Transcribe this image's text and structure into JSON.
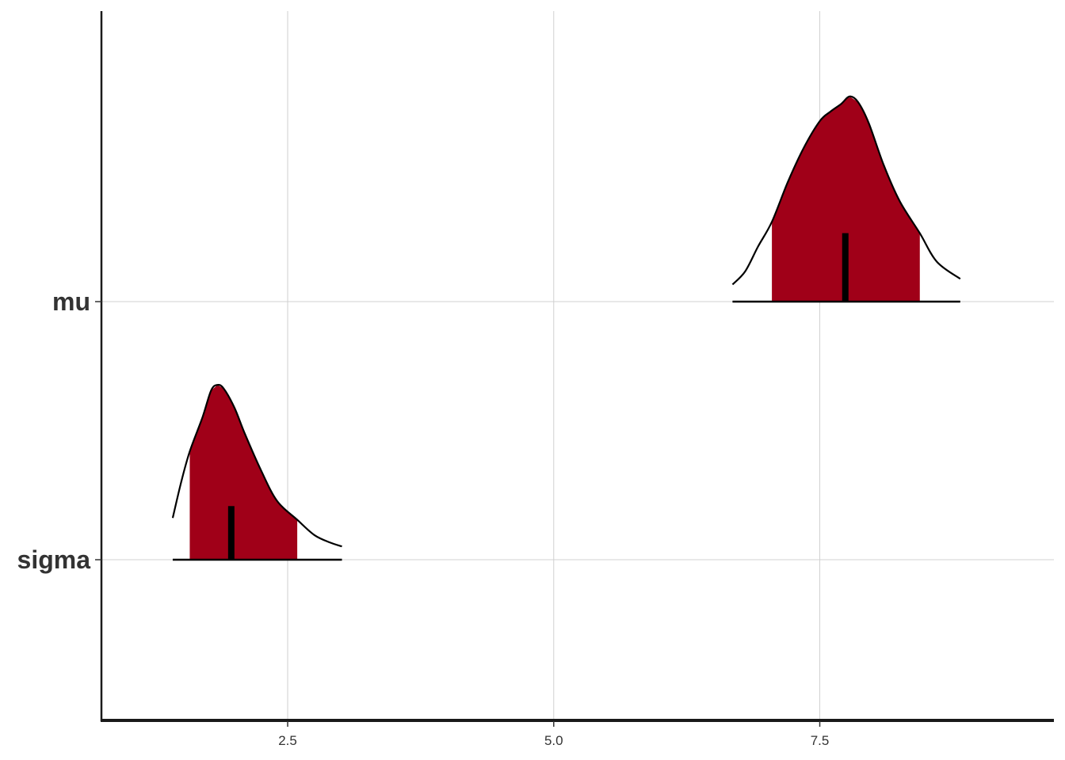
{
  "chart_data": {
    "type": "area",
    "title": "",
    "xlabel": "",
    "ylabel": "",
    "xlim": [
      0.75,
      9.7
    ],
    "x_ticks": [
      2.5,
      5.0,
      7.5
    ],
    "x_tick_labels": [
      "2.5",
      "5.0",
      "7.5"
    ],
    "categories": [
      "mu",
      "sigma"
    ],
    "grid": true,
    "fill_color": "#A00018",
    "line_color": "#000000",
    "series": [
      {
        "name": "mu",
        "median": 7.74,
        "interval_inner": [
          7.05,
          8.44
        ],
        "range": [
          6.68,
          8.82
        ],
        "density_x": [
          6.68,
          6.8,
          6.92,
          7.05,
          7.2,
          7.35,
          7.5,
          7.6,
          7.7,
          7.78,
          7.86,
          7.96,
          8.1,
          8.25,
          8.44,
          8.6,
          8.82
        ],
        "density_y": [
          0.09,
          0.16,
          0.29,
          0.42,
          0.63,
          0.81,
          0.95,
          1.0,
          1.04,
          1.08,
          1.05,
          0.94,
          0.72,
          0.53,
          0.36,
          0.21,
          0.12
        ]
      },
      {
        "name": "sigma",
        "median": 1.97,
        "interval_inner": [
          1.58,
          2.59
        ],
        "range": [
          1.42,
          3.01
        ],
        "density_x": [
          1.42,
          1.5,
          1.58,
          1.7,
          1.78,
          1.84,
          1.9,
          2.0,
          2.1,
          2.25,
          2.4,
          2.59,
          2.75,
          2.9,
          3.01
        ],
        "density_y": [
          0.22,
          0.41,
          0.57,
          0.75,
          0.89,
          0.92,
          0.9,
          0.8,
          0.66,
          0.47,
          0.31,
          0.21,
          0.13,
          0.09,
          0.07
        ]
      }
    ]
  }
}
